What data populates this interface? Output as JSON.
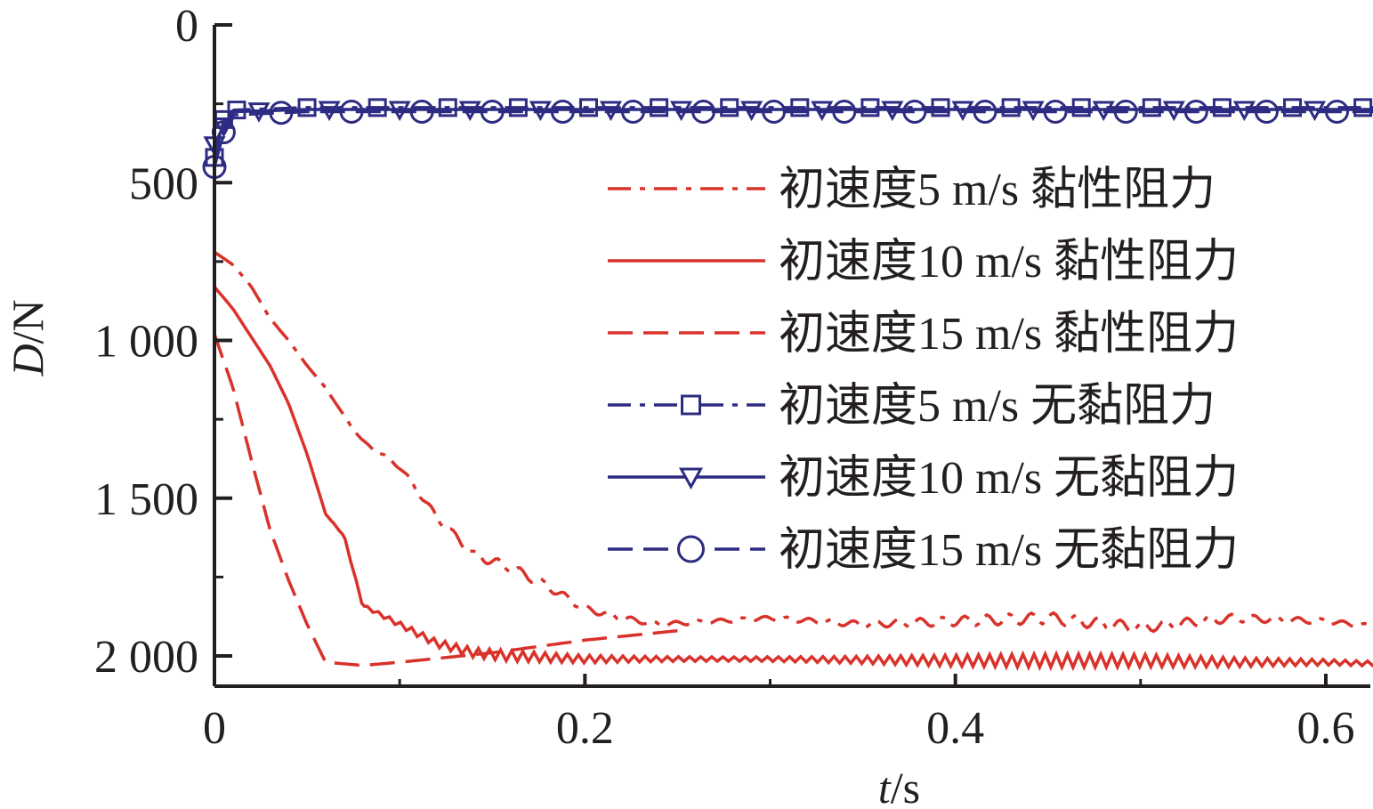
{
  "chart_data": {
    "type": "line",
    "xlabel": {
      "var": "t",
      "unit": "/s"
    },
    "ylabel": {
      "var": "D",
      "unit": "/N"
    },
    "xlim": [
      0,
      0.63
    ],
    "ylim": [
      2100,
      0
    ],
    "y_inverted": true,
    "x_ticks": [
      {
        "value": 0,
        "label": "0"
      },
      {
        "value": 0.2,
        "label": "0.2"
      },
      {
        "value": 0.4,
        "label": "0.4"
      },
      {
        "value": 0.6,
        "label": "0.6"
      }
    ],
    "y_ticks": [
      {
        "value": 0,
        "label": "0"
      },
      {
        "value": 500,
        "label": "500"
      },
      {
        "value": 1000,
        "label": "1 000"
      },
      {
        "value": 1500,
        "label": "1 500"
      },
      {
        "value": 2000,
        "label": "2 000"
      }
    ],
    "grid": false,
    "legend_position": "right",
    "series": [
      {
        "name": "初速度5 m/s 黏性阻力",
        "color": "#d9322b",
        "line_style": "dash-dot",
        "marker": "none",
        "x": [
          0,
          0.01,
          0.02,
          0.03,
          0.04,
          0.05,
          0.06,
          0.07,
          0.08,
          0.1,
          0.12,
          0.14,
          0.16,
          0.18,
          0.2,
          0.22,
          0.24,
          0.3,
          0.35,
          0.4,
          0.45,
          0.5,
          0.55,
          0.6,
          0.63
        ],
        "y": [
          720,
          760,
          830,
          930,
          1000,
          1080,
          1150,
          1240,
          1320,
          1400,
          1560,
          1680,
          1720,
          1780,
          1850,
          1880,
          1900,
          1880,
          1900,
          1890,
          1880,
          1910,
          1880,
          1890,
          1910
        ],
        "osc_amp": 12,
        "osc_period": 0.012
      },
      {
        "name": "初速度10 m/s 黏性阻力",
        "color": "#d9322b",
        "line_style": "solid",
        "marker": "none",
        "x": [
          0,
          0.01,
          0.02,
          0.03,
          0.04,
          0.05,
          0.06,
          0.07,
          0.08,
          0.1,
          0.12,
          0.14,
          0.16,
          0.2,
          0.3,
          0.4,
          0.5,
          0.55,
          0.6,
          0.63
        ],
        "y": [
          830,
          900,
          990,
          1080,
          1200,
          1360,
          1550,
          1620,
          1840,
          1900,
          1960,
          1990,
          2000,
          2010,
          2010,
          2015,
          2015,
          2020,
          2020,
          2025
        ],
        "osc_amp": 14,
        "osc_period": 0.006
      },
      {
        "name": "初速度15 m/s 黏性阻力",
        "color": "#d9322b",
        "line_style": "dashed",
        "marker": "none",
        "x": [
          0,
          0.01,
          0.02,
          0.03,
          0.04,
          0.05,
          0.06,
          0.08,
          0.1,
          0.15,
          0.2,
          0.25
        ],
        "y": [
          980,
          1150,
          1380,
          1600,
          1760,
          1900,
          2020,
          2030,
          2020,
          1990,
          1950,
          1920
        ],
        "osc_amp": 0,
        "osc_period": 0.01
      },
      {
        "name": "初速度5 m/s 无黏阻力",
        "color": "#2e2c82",
        "line_style": "dash-dot",
        "marker": "square",
        "x": [
          0,
          0.005,
          0.01,
          0.05,
          0.1,
          0.2,
          0.3,
          0.4,
          0.5,
          0.6,
          0.63
        ],
        "y": [
          420,
          300,
          270,
          262,
          262,
          262,
          262,
          262,
          262,
          262,
          262
        ],
        "osc_amp": 0,
        "osc_period": 0.01
      },
      {
        "name": "初速度10 m/s 无黏阻力",
        "color": "#2e2c82",
        "line_style": "solid",
        "marker": "triangle-down",
        "x": [
          0,
          0.005,
          0.01,
          0.05,
          0.1,
          0.2,
          0.3,
          0.4,
          0.5,
          0.6,
          0.63
        ],
        "y": [
          380,
          320,
          275,
          268,
          268,
          268,
          268,
          268,
          268,
          268,
          268
        ],
        "osc_amp": 0,
        "osc_period": 0.01
      },
      {
        "name": "初速度15 m/s 无黏阻力",
        "color": "#2e2c82",
        "line_style": "dashed",
        "marker": "circle",
        "x": [
          0,
          0.005,
          0.01,
          0.05,
          0.1,
          0.2,
          0.3,
          0.4,
          0.5,
          0.6,
          0.63
        ],
        "y": [
          450,
          340,
          285,
          275,
          275,
          275,
          275,
          275,
          275,
          275,
          275
        ],
        "osc_amp": 0,
        "osc_period": 0.01
      }
    ]
  }
}
